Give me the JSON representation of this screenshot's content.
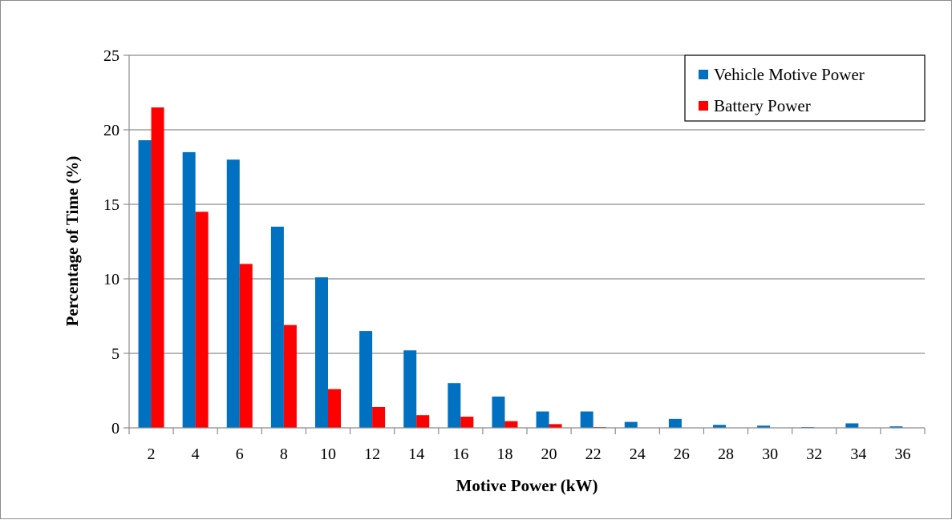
{
  "chart_data": {
    "type": "bar",
    "categories": [
      "2",
      "4",
      "6",
      "8",
      "10",
      "12",
      "14",
      "16",
      "18",
      "20",
      "22",
      "24",
      "26",
      "28",
      "30",
      "32",
      "34",
      "36"
    ],
    "series": [
      {
        "name": "Vehicle Motive Power",
        "color": "#0070C0",
        "values": [
          19.3,
          18.5,
          18.0,
          13.5,
          10.1,
          6.5,
          5.2,
          3.0,
          2.1,
          1.1,
          1.1,
          0.4,
          0.6,
          0.2,
          0.15,
          0.05,
          0.3,
          0.1
        ]
      },
      {
        "name": "Battery Power",
        "color": "#FF0000",
        "values": [
          21.5,
          14.5,
          11.0,
          6.9,
          2.6,
          1.4,
          0.85,
          0.75,
          0.45,
          0.25,
          0.05,
          0,
          0,
          0,
          0,
          0,
          0,
          0
        ]
      }
    ],
    "title": "",
    "xlabel": "Motive Power (kW)",
    "ylabel": "Percentage of Time (%)",
    "ylim": [
      0,
      25
    ],
    "yticks": [
      0,
      5,
      10,
      15,
      20,
      25
    ],
    "grid": true,
    "legend_position": "top-right"
  }
}
